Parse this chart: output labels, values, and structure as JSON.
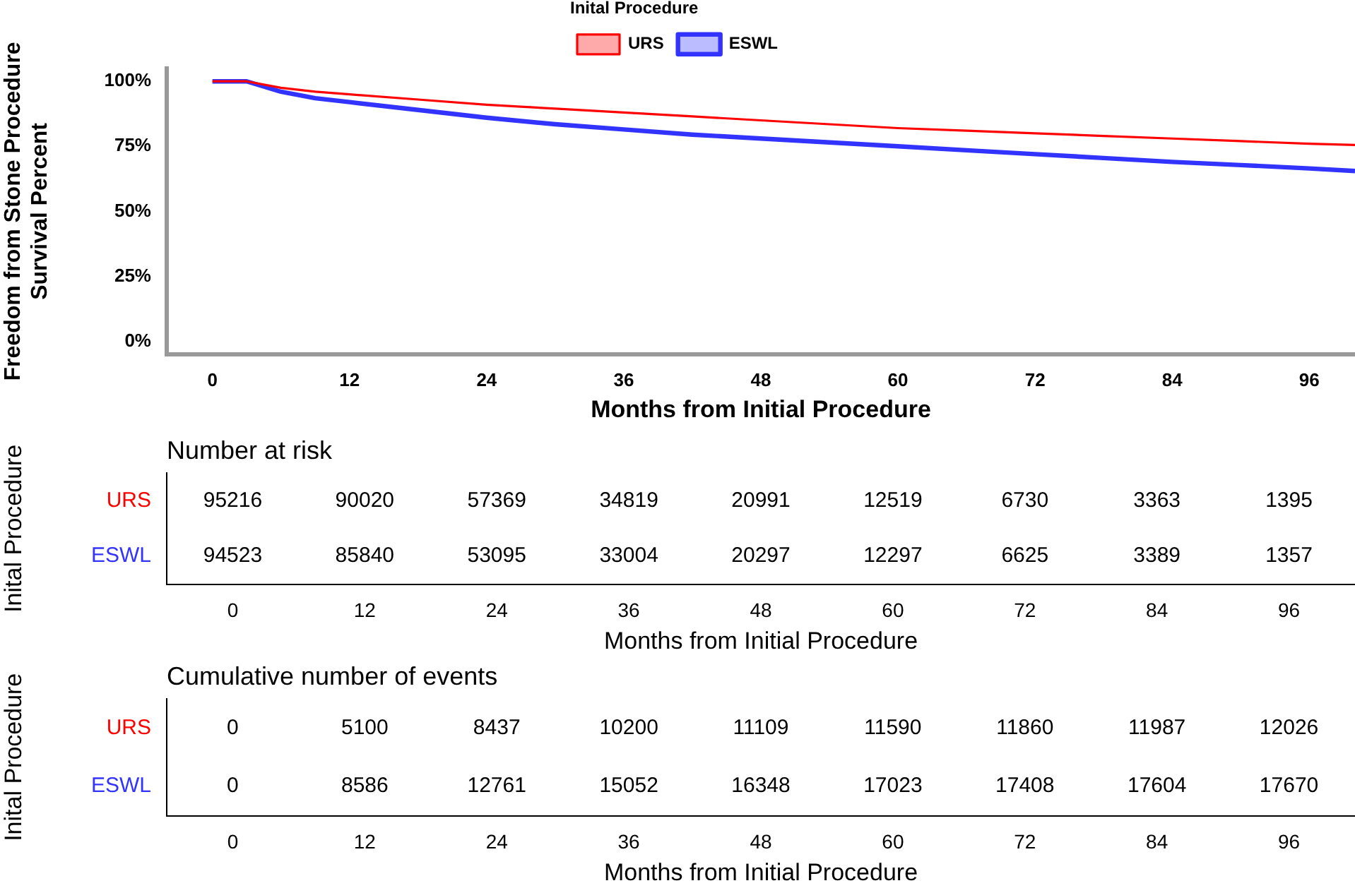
{
  "chart_data": [
    {
      "type": "line",
      "xlabel": "Months from Initial Procedure",
      "ylabel": "Freedom from Stone Procedure\nSurvival Percent",
      "legend_title": "Inital Procedure",
      "legend": "top",
      "grid": false,
      "marker": "none",
      "xlim": [
        -4,
        100
      ],
      "xticks": [
        0,
        12,
        24,
        36,
        48,
        60,
        72,
        84,
        96
      ],
      "ylim": [
        -5,
        105
      ],
      "yticks": [
        {
          "value": 0,
          "label": "0%"
        },
        {
          "value": 25,
          "label": "25%"
        },
        {
          "value": 50,
          "label": "50%"
        },
        {
          "value": 75,
          "label": "75%"
        },
        {
          "value": 100,
          "label": "100%"
        }
      ],
      "x": [
        0,
        3,
        6,
        9,
        12,
        18,
        24,
        30,
        36,
        42,
        48,
        54,
        60,
        66,
        72,
        78,
        84,
        90,
        96,
        100
      ],
      "series": [
        {
          "name": "URS",
          "color": "#ff0000",
          "values": [
            100,
            100,
            97.5,
            96,
            95,
            93,
            91,
            89.5,
            88,
            86.5,
            85,
            83.5,
            82,
            81,
            80,
            79,
            78,
            77,
            76,
            75.5
          ]
        },
        {
          "name": "ESWL",
          "color": "#3333ff",
          "values": [
            100,
            100,
            96,
            93.5,
            92,
            89,
            86,
            83.5,
            81.5,
            79.5,
            78,
            76.5,
            75,
            73.5,
            72,
            70.5,
            69,
            67.8,
            66.5,
            65.5
          ]
        }
      ]
    },
    {
      "type": "heatmap",
      "title": "Number at risk",
      "data_labels": true,
      "xlabel": "Months from Initial Procedure",
      "ylabel": "Inital Procedure",
      "categories": [
        "0",
        "12",
        "24",
        "36",
        "48",
        "60",
        "72",
        "84",
        "96"
      ],
      "y_categories": [
        "URS",
        "ESWL"
      ],
      "colors": [
        "#ff0000",
        "#3333ff"
      ],
      "cells": [
        [
          95216,
          90020,
          57369,
          34819,
          20991,
          12519,
          6730,
          3363,
          1395
        ],
        [
          94523,
          85840,
          53095,
          33004,
          20297,
          12297,
          6625,
          3389,
          1357
        ]
      ]
    },
    {
      "type": "heatmap",
      "title": "Cumulative number of events",
      "data_labels": true,
      "xlabel": "Months from Initial Procedure",
      "ylabel": "Inital Procedure",
      "categories": [
        "0",
        "12",
        "24",
        "36",
        "48",
        "60",
        "72",
        "84",
        "96"
      ],
      "y_categories": [
        "URS",
        "ESWL"
      ],
      "colors": [
        "#ff0000",
        "#3333ff"
      ],
      "cells": [
        [
          0,
          5100,
          8437,
          10200,
          11109,
          11590,
          11860,
          11987,
          12026
        ],
        [
          0,
          8586,
          12761,
          15052,
          16348,
          17023,
          17408,
          17604,
          17670
        ]
      ]
    }
  ]
}
